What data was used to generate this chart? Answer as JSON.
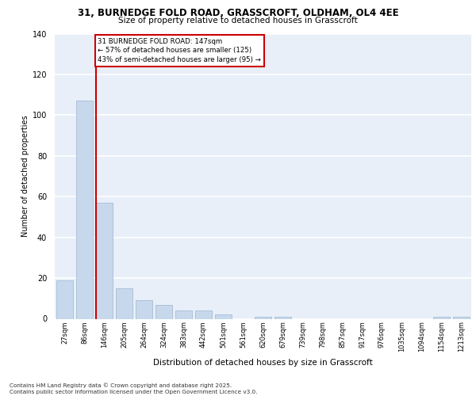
{
  "title_line1": "31, BURNEDGE FOLD ROAD, GRASSCROFT, OLDHAM, OL4 4EE",
  "title_line2": "Size of property relative to detached houses in Grasscroft",
  "xlabel": "Distribution of detached houses by size in Grasscroft",
  "ylabel": "Number of detached properties",
  "categories": [
    "27sqm",
    "86sqm",
    "146sqm",
    "205sqm",
    "264sqm",
    "324sqm",
    "383sqm",
    "442sqm",
    "501sqm",
    "561sqm",
    "620sqm",
    "679sqm",
    "739sqm",
    "798sqm",
    "857sqm",
    "917sqm",
    "976sqm",
    "1035sqm",
    "1094sqm",
    "1154sqm",
    "1213sqm"
  ],
  "values": [
    19,
    107,
    57,
    15,
    9,
    7,
    4,
    4,
    2,
    0,
    1,
    1,
    0,
    0,
    0,
    0,
    0,
    0,
    0,
    1,
    1
  ],
  "bar_color": "#c8d8ec",
  "bar_edge_color": "#9ab4d0",
  "property_line_label": "31 BURNEDGE FOLD ROAD: 147sqm",
  "annotation_line2": "← 57% of detached houses are smaller (125)",
  "annotation_line3": "43% of semi-detached houses are larger (95) →",
  "line_color": "#cc0000",
  "ylim": [
    0,
    140
  ],
  "yticks": [
    0,
    20,
    40,
    60,
    80,
    100,
    120,
    140
  ],
  "background_color": "#e8eff8",
  "grid_color": "#ffffff",
  "footer_line1": "Contains HM Land Registry data © Crown copyright and database right 2025.",
  "footer_line2": "Contains public sector information licensed under the Open Government Licence v3.0."
}
